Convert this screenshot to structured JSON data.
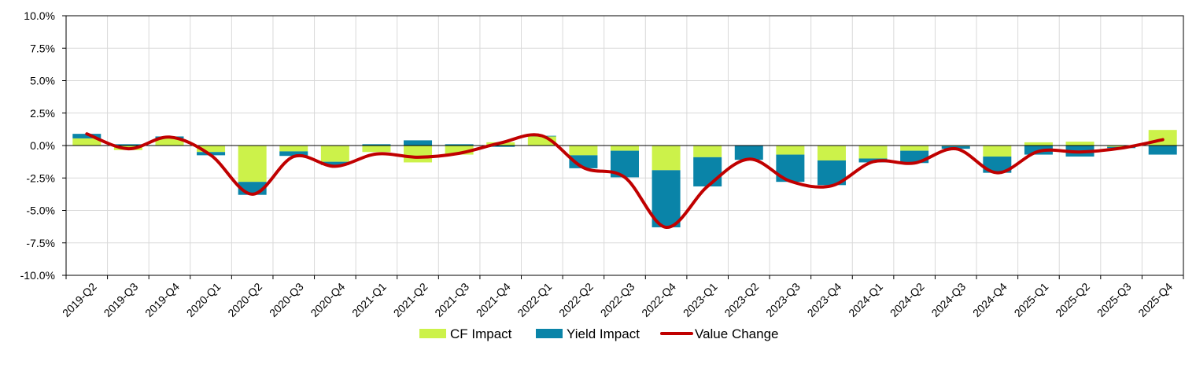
{
  "chart_data": {
    "type": "bar",
    "stacked": true,
    "title": "",
    "xlabel": "",
    "ylabel": "",
    "ylim": [
      -10,
      10
    ],
    "y_ticks": [
      10,
      7.5,
      5,
      2.5,
      0,
      -2.5,
      -5,
      -7.5,
      -10
    ],
    "y_tick_labels": [
      "10.0%",
      "7.5%",
      "5.0%",
      "2.5%",
      "0.0%",
      "-2.5%",
      "-5.0%",
      "-7.5%",
      "-10.0%"
    ],
    "grid": true,
    "legend_position": "bottom-center",
    "categories": [
      "2019-Q2",
      "2019-Q3",
      "2019-Q4",
      "2020-Q1",
      "2020-Q2",
      "2020-Q3",
      "2020-Q4",
      "2021-Q1",
      "2021-Q2",
      "2021-Q3",
      "2021-Q4",
      "2022-Q1",
      "2022-Q2",
      "2022-Q3",
      "2022-Q4",
      "2023-Q1",
      "2023-Q2",
      "2023-Q3",
      "2023-Q4",
      "2024-Q1",
      "2024-Q2",
      "2024-Q3",
      "2024-Q4",
      "2025-Q1",
      "2025-Q2",
      "2025-Q3",
      "2025-Q4"
    ],
    "series": [
      {
        "name": "CF Impact",
        "type": "bar",
        "color": "#ccf24a",
        "values": [
          0.55,
          -0.35,
          0.55,
          -0.5,
          -2.8,
          -0.45,
          -1.25,
          -0.5,
          -1.3,
          -0.7,
          0.25,
          0.7,
          -0.75,
          -0.4,
          -1.9,
          -0.9,
          0.0,
          -0.7,
          -1.15,
          -1.0,
          -0.4,
          -0.05,
          -0.85,
          0.25,
          0.3,
          -0.1,
          1.2
        ]
      },
      {
        "name": "Yield Impact",
        "type": "bar",
        "color": "#0a84a8",
        "values": [
          0.35,
          0.1,
          0.15,
          -0.25,
          -1.0,
          -0.35,
          -0.25,
          0.1,
          0.4,
          0.1,
          -0.1,
          0.05,
          -1.0,
          -2.05,
          -4.4,
          -2.25,
          -1.1,
          -2.1,
          -1.9,
          -0.3,
          -0.95,
          -0.2,
          -1.25,
          -0.7,
          -0.85,
          -0.1,
          -0.7
        ]
      },
      {
        "name": "Value Change",
        "type": "line",
        "color": "#c00000",
        "values": [
          0.9,
          -0.25,
          0.65,
          -0.75,
          -3.75,
          -0.85,
          -1.6,
          -0.65,
          -0.9,
          -0.6,
          0.2,
          0.75,
          -1.7,
          -2.45,
          -6.3,
          -3.15,
          -1.05,
          -2.75,
          -3.1,
          -1.25,
          -1.35,
          -0.25,
          -2.1,
          -0.45,
          -0.5,
          -0.2,
          0.45
        ]
      }
    ]
  }
}
